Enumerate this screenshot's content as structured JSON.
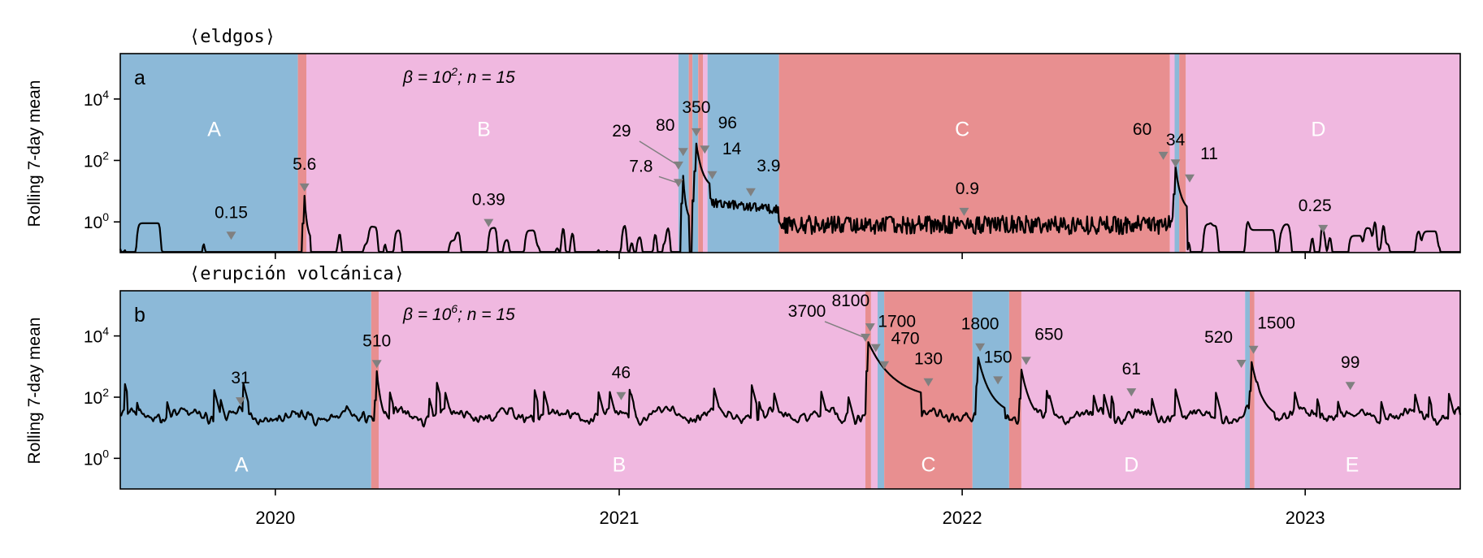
{
  "colors": {
    "blue": "#8cb9d8",
    "pink": "#f0b8e0",
    "red": "#e88f90",
    "line": "#000000",
    "marker": "#808080",
    "regime_label": "#ffffff"
  },
  "x_ticks": [
    "2020",
    "2021",
    "2022",
    "2023"
  ],
  "chart_data": [
    {
      "type": "line",
      "panel_letter": "a",
      "title": "⟨eldgos⟩",
      "ylabel": "Rolling 7-day mean",
      "y_scale": "log",
      "ylim": [
        0.1,
        300000
      ],
      "y_ticks": [
        "10^0",
        "10^2",
        "10^4"
      ],
      "param_text": {
        "prefix": "β = 10",
        "exp": "2",
        "suffix": "; n = 15"
      },
      "x_range": [
        "2019-07-20",
        "2023-06-15"
      ],
      "regime_bands": [
        {
          "start": "2019-07-20",
          "end": "2020-01-25",
          "color": "blue"
        },
        {
          "start": "2020-01-25",
          "end": "2020-02-03",
          "color": "red"
        },
        {
          "start": "2020-02-03",
          "end": "2021-03-05",
          "color": "pink"
        },
        {
          "start": "2021-03-05",
          "end": "2021-03-16",
          "color": "blue"
        },
        {
          "start": "2021-03-16",
          "end": "2021-03-20",
          "color": "red"
        },
        {
          "start": "2021-03-20",
          "end": "2021-03-26",
          "color": "blue"
        },
        {
          "start": "2021-03-26",
          "end": "2021-03-31",
          "color": "red"
        },
        {
          "start": "2021-03-31",
          "end": "2021-04-05",
          "color": "pink"
        },
        {
          "start": "2021-04-05",
          "end": "2021-06-20",
          "color": "blue"
        },
        {
          "start": "2021-06-20",
          "end": "2022-08-10",
          "color": "red"
        },
        {
          "start": "2022-08-10",
          "end": "2022-08-15",
          "color": "pink"
        },
        {
          "start": "2022-08-15",
          "end": "2022-08-20",
          "color": "blue"
        },
        {
          "start": "2022-08-20",
          "end": "2022-08-27",
          "color": "red"
        },
        {
          "start": "2022-08-27",
          "end": "2023-06-15",
          "color": "pink"
        }
      ],
      "regime_labels": [
        {
          "label": "A",
          "date": "2019-10-28",
          "y": 1000
        },
        {
          "label": "B",
          "date": "2020-08-10",
          "y": 1000
        },
        {
          "label": "C",
          "date": "2022-01-01",
          "y": 1000
        },
        {
          "label": "D",
          "date": "2023-01-15",
          "y": 1000
        }
      ],
      "annotations": [
        {
          "text": "0.15",
          "date": "2019-11-15",
          "value": 0.15,
          "label_dx": 0,
          "label_dy": -22
        },
        {
          "text": "5.6",
          "date": "2020-02-01",
          "value": 5.6,
          "label_dx": 0,
          "label_dy": -22
        },
        {
          "text": "0.39",
          "date": "2020-08-15",
          "value": 0.39,
          "label_dx": 0,
          "label_dy": -22
        },
        {
          "text": "29",
          "date": "2021-03-05",
          "value": 29,
          "label_dx": -70,
          "label_dy": -36
        },
        {
          "text": "7.8",
          "date": "2021-03-05",
          "value": 7.8,
          "label_dx": -46,
          "label_dy": -14
        },
        {
          "text": "80",
          "date": "2021-03-10",
          "value": 80,
          "label_dx": -22,
          "label_dy": -26
        },
        {
          "text": "350",
          "date": "2021-03-24",
          "value": 350,
          "label_dx": 0,
          "label_dy": -24
        },
        {
          "text": "96",
          "date": "2021-04-02",
          "value": 96,
          "label_dx": 28,
          "label_dy": -26
        },
        {
          "text": "14",
          "date": "2021-04-10",
          "value": 14,
          "label_dx": 24,
          "label_dy": -26
        },
        {
          "text": "3.9",
          "date": "2021-05-21",
          "value": 3.9,
          "label_dx": 22,
          "label_dy": -26
        },
        {
          "text": "0.9",
          "date": "2022-01-03",
          "value": 0.9,
          "label_dx": 4,
          "label_dy": -22
        },
        {
          "text": "60",
          "date": "2022-08-03",
          "value": 60,
          "label_dx": -26,
          "label_dy": -26
        },
        {
          "text": "34",
          "date": "2022-08-16",
          "value": 34,
          "label_dx": 0,
          "label_dy": -22
        },
        {
          "text": "11",
          "date": "2022-08-31",
          "value": 11,
          "label_dx": 24,
          "label_dy": -24
        },
        {
          "text": "0.25",
          "date": "2023-01-20",
          "value": 0.25,
          "label_dx": -10,
          "label_dy": -22
        }
      ]
    },
    {
      "type": "line",
      "panel_letter": "b",
      "title": "⟨erupción volcánica⟩",
      "ylabel": "Rolling 7-day mean",
      "y_scale": "log",
      "ylim": [
        0.1,
        300000
      ],
      "y_ticks": [
        "10^0",
        "10^2",
        "10^4"
      ],
      "param_text": {
        "prefix": "β = 10",
        "exp": "6",
        "suffix": "; n = 15"
      },
      "x_range": [
        "2019-07-20",
        "2023-06-15"
      ],
      "regime_bands": [
        {
          "start": "2019-07-20",
          "end": "2020-04-12",
          "color": "blue"
        },
        {
          "start": "2020-04-12",
          "end": "2020-04-20",
          "color": "red"
        },
        {
          "start": "2020-04-20",
          "end": "2021-09-20",
          "color": "pink"
        },
        {
          "start": "2021-09-20",
          "end": "2021-09-26",
          "color": "red"
        },
        {
          "start": "2021-09-26",
          "end": "2021-10-03",
          "color": "pink"
        },
        {
          "start": "2021-10-03",
          "end": "2021-10-10",
          "color": "blue"
        },
        {
          "start": "2021-10-10",
          "end": "2022-01-12",
          "color": "red"
        },
        {
          "start": "2022-01-12",
          "end": "2022-02-20",
          "color": "blue"
        },
        {
          "start": "2022-02-20",
          "end": "2022-03-05",
          "color": "red"
        },
        {
          "start": "2022-03-05",
          "end": "2022-10-29",
          "color": "pink"
        },
        {
          "start": "2022-10-29",
          "end": "2022-11-03",
          "color": "blue"
        },
        {
          "start": "2022-11-03",
          "end": "2022-11-08",
          "color": "red"
        },
        {
          "start": "2022-11-08",
          "end": "2023-06-15",
          "color": "pink"
        }
      ],
      "regime_labels": [
        {
          "label": "A",
          "date": "2019-11-26",
          "y": 0.6
        },
        {
          "label": "B",
          "date": "2021-01-01",
          "y": 0.6
        },
        {
          "label": "C",
          "date": "2021-11-26",
          "y": 0.6
        },
        {
          "label": "D",
          "date": "2022-06-30",
          "y": 0.6
        },
        {
          "label": "E",
          "date": "2023-02-20",
          "y": 0.6
        }
      ],
      "annotations": [
        {
          "text": "31",
          "date": "2019-11-25",
          "value": 31,
          "label_dx": 0,
          "label_dy": -22
        },
        {
          "text": "510",
          "date": "2020-04-18",
          "value": 510,
          "label_dx": 0,
          "label_dy": -22
        },
        {
          "text": "46",
          "date": "2021-01-03",
          "value": 46,
          "label_dx": 0,
          "label_dy": -22
        },
        {
          "text": "3700",
          "date": "2021-09-20",
          "value": 3700,
          "label_dx": -72,
          "label_dy": -26
        },
        {
          "text": "8100",
          "date": "2021-09-25",
          "value": 8100,
          "label_dx": -24,
          "label_dy": -26
        },
        {
          "text": "1700",
          "date": "2021-10-01",
          "value": 1700,
          "label_dx": 26,
          "label_dy": -26
        },
        {
          "text": "470",
          "date": "2021-10-10",
          "value": 470,
          "label_dx": 26,
          "label_dy": -26
        },
        {
          "text": "130",
          "date": "2021-11-26",
          "value": 130,
          "label_dx": 0,
          "label_dy": -22
        },
        {
          "text": "1800",
          "date": "2022-01-20",
          "value": 1800,
          "label_dx": 0,
          "label_dy": -22
        },
        {
          "text": "150",
          "date": "2022-02-08",
          "value": 150,
          "label_dx": 0,
          "label_dy": -22
        },
        {
          "text": "650",
          "date": "2022-03-10",
          "value": 650,
          "label_dx": 28,
          "label_dy": -26
        },
        {
          "text": "61",
          "date": "2022-06-30",
          "value": 61,
          "label_dx": 0,
          "label_dy": -22
        },
        {
          "text": "520",
          "date": "2022-10-25",
          "value": 520,
          "label_dx": -28,
          "label_dy": -26
        },
        {
          "text": "1500",
          "date": "2022-11-07",
          "value": 1500,
          "label_dx": 28,
          "label_dy": -26
        },
        {
          "text": "99",
          "date": "2023-02-18",
          "value": 99,
          "label_dx": 0,
          "label_dy": -22
        }
      ]
    }
  ]
}
